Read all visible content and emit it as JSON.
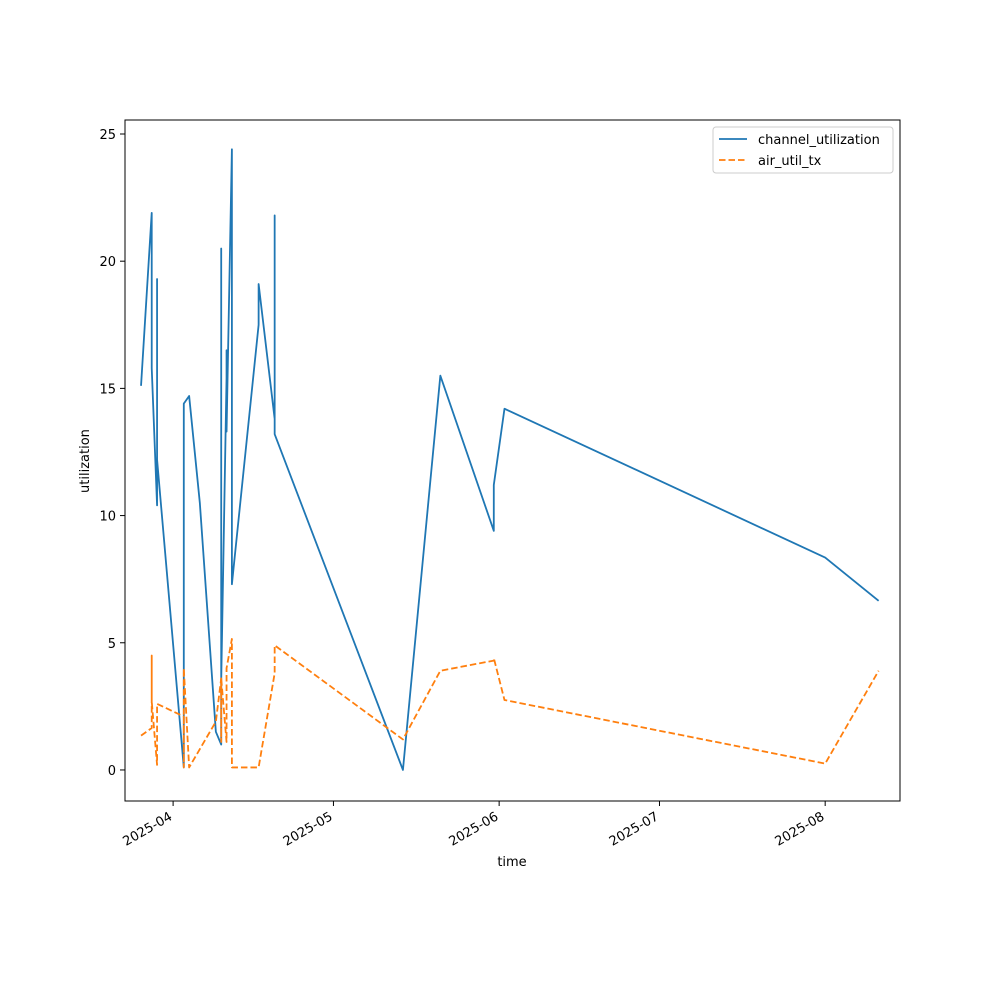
{
  "chart_data": {
    "type": "line",
    "xlabel": "time",
    "ylabel": "utilization",
    "x_tick_labels": [
      "2025-04",
      "2025-05",
      "2025-06",
      "2025-07",
      "2025-08"
    ],
    "x_tick_dates": [
      "2025-04-01",
      "2025-05-01",
      "2025-06-01",
      "2025-07-01",
      "2025-08-01"
    ],
    "xlim": [
      "2025-03-23",
      "2025-08-15"
    ],
    "y_ticks": [
      0,
      5,
      10,
      15,
      20,
      25
    ],
    "y_tick_labels": [
      "0",
      "5",
      "10",
      "15",
      "20",
      "25"
    ],
    "ylim": [
      -1.22,
      25.55
    ],
    "grid": false,
    "legend_position": "top-right",
    "series": [
      {
        "name": "channel_utilization",
        "color": "#1f77b4",
        "dash": "solid",
        "points": [
          [
            "2025-03-26",
            15.1
          ],
          [
            "2025-03-28",
            21.9
          ],
          [
            "2025-03-28",
            20.5
          ],
          [
            "2025-03-28",
            15.8
          ],
          [
            "2025-03-29",
            10.4
          ],
          [
            "2025-03-29",
            19.3
          ],
          [
            "2025-03-29",
            16.0
          ],
          [
            "2025-03-29",
            15.9
          ],
          [
            "2025-03-29",
            12.2
          ],
          [
            "2025-04-03",
            0.1
          ],
          [
            "2025-04-03",
            14.4
          ],
          [
            "2025-04-04",
            14.7
          ],
          [
            "2025-04-06",
            10.5
          ],
          [
            "2025-04-09",
            1.5
          ],
          [
            "2025-04-10",
            1.0
          ],
          [
            "2025-04-10",
            20.5
          ],
          [
            "2025-04-10",
            11.2
          ],
          [
            "2025-04-10",
            15.5
          ],
          [
            "2025-04-10",
            3.5
          ],
          [
            "2025-04-11",
            15.4
          ],
          [
            "2025-04-11",
            13.5
          ],
          [
            "2025-04-11",
            16.5
          ],
          [
            "2025-04-11",
            13.5
          ],
          [
            "2025-04-11",
            16.5
          ],
          [
            "2025-04-11",
            13.3
          ],
          [
            "2025-04-12",
            24.4
          ],
          [
            "2025-04-12",
            7.3
          ],
          [
            "2025-04-17",
            17.5
          ],
          [
            "2025-04-17",
            19.1
          ],
          [
            "2025-04-20",
            13.8
          ],
          [
            "2025-04-20",
            21.8
          ],
          [
            "2025-04-20",
            13.2
          ],
          [
            "2025-05-14",
            0.0
          ],
          [
            "2025-05-21",
            15.5
          ],
          [
            "2025-05-31",
            9.4
          ],
          [
            "2025-05-31",
            11.2
          ],
          [
            "2025-06-02",
            14.2
          ],
          [
            "2025-08-01",
            8.35
          ],
          [
            "2025-08-11",
            6.65
          ]
        ]
      },
      {
        "name": "air_util_tx",
        "color": "#ff7f0e",
        "dash": "dashed",
        "points": [
          [
            "2025-03-26",
            1.35
          ],
          [
            "2025-03-28",
            1.65
          ],
          [
            "2025-03-28",
            4.5
          ],
          [
            "2025-03-28",
            2.7
          ],
          [
            "2025-03-29",
            0.2
          ],
          [
            "2025-03-29",
            2.6
          ],
          [
            "2025-04-03",
            2.1
          ],
          [
            "2025-04-03",
            0.1
          ],
          [
            "2025-04-03",
            4.0
          ],
          [
            "2025-04-04",
            0.1
          ],
          [
            "2025-04-09",
            1.9
          ],
          [
            "2025-04-10",
            3.6
          ],
          [
            "2025-04-10",
            1.1
          ],
          [
            "2025-04-10",
            3.6
          ],
          [
            "2025-04-11",
            1.1
          ],
          [
            "2025-04-11",
            4.0
          ],
          [
            "2025-04-12",
            5.15
          ],
          [
            "2025-04-12",
            0.1
          ],
          [
            "2025-04-17",
            0.1
          ],
          [
            "2025-04-20",
            3.8
          ],
          [
            "2025-04-20",
            4.9
          ],
          [
            "2025-05-14",
            1.2
          ],
          [
            "2025-05-21",
            3.9
          ],
          [
            "2025-05-31",
            4.3
          ],
          [
            "2025-05-31",
            4.4
          ],
          [
            "2025-06-02",
            2.75
          ],
          [
            "2025-08-01",
            0.25
          ],
          [
            "2025-08-11",
            3.9
          ]
        ]
      }
    ]
  }
}
